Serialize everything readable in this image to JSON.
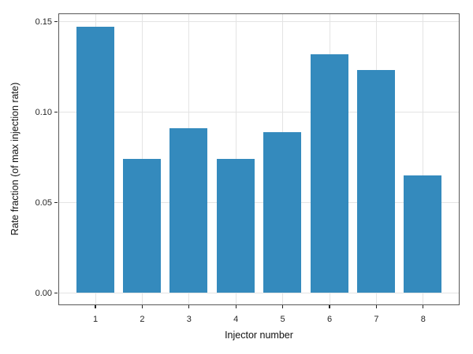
{
  "chart_data": {
    "type": "bar",
    "title": "",
    "xlabel": "Injector number",
    "ylabel": "Rate fraction (of max injection rate)",
    "categories": [
      "1",
      "2",
      "3",
      "4",
      "5",
      "6",
      "7",
      "8"
    ],
    "values": [
      0.147,
      0.074,
      0.091,
      0.074,
      0.089,
      0.132,
      0.123,
      0.065
    ],
    "yticks": [
      0.0,
      0.05,
      0.1,
      0.15
    ],
    "ytick_labels": [
      "0.00",
      "0.05",
      "0.10",
      "0.15"
    ],
    "ylim": [
      -0.006,
      0.154
    ],
    "grid": "major-both",
    "legend": "none",
    "colors": {
      "bar_fill": "#348abd",
      "gridline": "#e4e4e4",
      "spine": "#595959",
      "tick": "#262626",
      "text": "#111111"
    }
  }
}
